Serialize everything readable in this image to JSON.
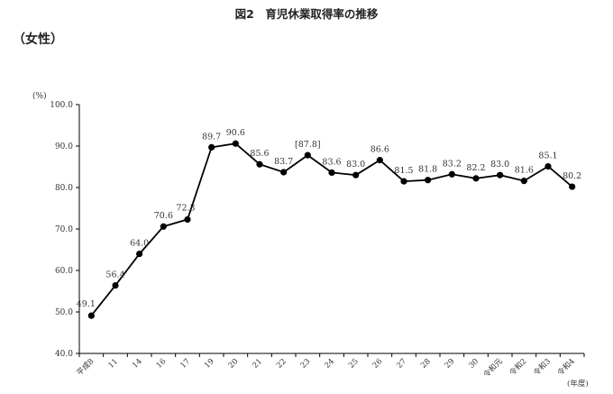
{
  "title": "図2　育児休業取得率の推移",
  "subtitle": "（女性）",
  "chart_data": {
    "type": "line",
    "title": "図2　育児休業取得率の推移",
    "subtitle": "（女性）",
    "ylabel": "(%)",
    "xunit": "(年度)",
    "ylim": [
      40,
      100
    ],
    "yticks": [
      40,
      50,
      60,
      70,
      80,
      90,
      100
    ],
    "ytick_labels": [
      "40.0",
      "50.0",
      "60.0",
      "70.0",
      "80.0",
      "90.0",
      "100.0"
    ],
    "grid": false,
    "legend": "none",
    "line_color": "#000000",
    "categories": [
      "平成8",
      "11",
      "14",
      "16",
      "17",
      "19",
      "20",
      "21",
      "22",
      "23",
      "24",
      "25",
      "26",
      "27",
      "28",
      "29",
      "30",
      "令和元",
      "令和2",
      "令和3",
      "令和4"
    ],
    "values": [
      49.1,
      56.4,
      64.0,
      70.6,
      72.3,
      89.7,
      90.6,
      85.6,
      83.7,
      87.8,
      83.6,
      83.0,
      86.6,
      81.5,
      81.8,
      83.2,
      82.2,
      83.0,
      81.6,
      85.1,
      80.2
    ],
    "data_labels": [
      "49.1",
      "56.4",
      "64.0",
      "70.6",
      "72.3",
      "89.7",
      "90.6",
      "85.6",
      "83.7",
      "[87.8]",
      "83.6",
      "83.0",
      "86.6",
      "81.5",
      "81.8",
      "83.2",
      "82.2",
      "83.0",
      "81.6",
      "85.1",
      "80.2"
    ]
  }
}
